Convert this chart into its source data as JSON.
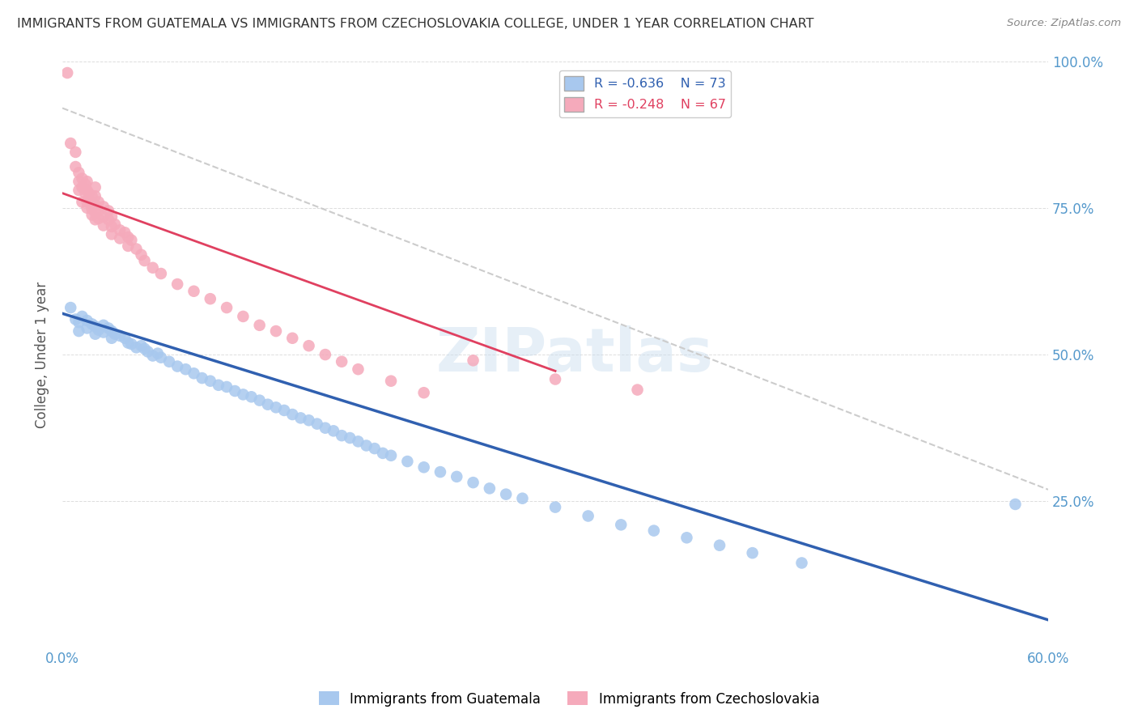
{
  "title": "IMMIGRANTS FROM GUATEMALA VS IMMIGRANTS FROM CZECHOSLOVAKIA COLLEGE, UNDER 1 YEAR CORRELATION CHART",
  "source": "Source: ZipAtlas.com",
  "ylabel": "College, Under 1 year",
  "xlim": [
    0.0,
    0.6
  ],
  "ylim": [
    0.0,
    1.0
  ],
  "legend_blue_r": "R = -0.636",
  "legend_blue_n": "N = 73",
  "legend_pink_r": "R = -0.248",
  "legend_pink_n": "N = 67",
  "blue_color": "#A8C8EE",
  "pink_color": "#F5AABB",
  "blue_line_color": "#3060B0",
  "pink_line_color": "#E04060",
  "dashed_line_color": "#CCCCCC",
  "background_color": "#FFFFFF",
  "grid_color": "#DDDDDD",
  "guatemala_points": [
    [
      0.005,
      0.58
    ],
    [
      0.008,
      0.56
    ],
    [
      0.01,
      0.555
    ],
    [
      0.01,
      0.54
    ],
    [
      0.012,
      0.565
    ],
    [
      0.015,
      0.558
    ],
    [
      0.015,
      0.545
    ],
    [
      0.018,
      0.552
    ],
    [
      0.02,
      0.548
    ],
    [
      0.02,
      0.535
    ],
    [
      0.022,
      0.542
    ],
    [
      0.025,
      0.55
    ],
    [
      0.025,
      0.538
    ],
    [
      0.028,
      0.545
    ],
    [
      0.03,
      0.54
    ],
    [
      0.03,
      0.528
    ],
    [
      0.032,
      0.535
    ],
    [
      0.035,
      0.532
    ],
    [
      0.038,
      0.528
    ],
    [
      0.04,
      0.52
    ],
    [
      0.042,
      0.518
    ],
    [
      0.045,
      0.512
    ],
    [
      0.048,
      0.515
    ],
    [
      0.05,
      0.51
    ],
    [
      0.052,
      0.505
    ],
    [
      0.055,
      0.498
    ],
    [
      0.058,
      0.502
    ],
    [
      0.06,
      0.495
    ],
    [
      0.065,
      0.488
    ],
    [
      0.07,
      0.48
    ],
    [
      0.075,
      0.475
    ],
    [
      0.08,
      0.468
    ],
    [
      0.085,
      0.46
    ],
    [
      0.09,
      0.455
    ],
    [
      0.095,
      0.448
    ],
    [
      0.1,
      0.445
    ],
    [
      0.105,
      0.438
    ],
    [
      0.11,
      0.432
    ],
    [
      0.115,
      0.428
    ],
    [
      0.12,
      0.422
    ],
    [
      0.125,
      0.415
    ],
    [
      0.13,
      0.41
    ],
    [
      0.135,
      0.405
    ],
    [
      0.14,
      0.398
    ],
    [
      0.145,
      0.392
    ],
    [
      0.15,
      0.388
    ],
    [
      0.155,
      0.382
    ],
    [
      0.16,
      0.375
    ],
    [
      0.165,
      0.37
    ],
    [
      0.17,
      0.362
    ],
    [
      0.175,
      0.358
    ],
    [
      0.18,
      0.352
    ],
    [
      0.185,
      0.345
    ],
    [
      0.19,
      0.34
    ],
    [
      0.195,
      0.332
    ],
    [
      0.2,
      0.328
    ],
    [
      0.21,
      0.318
    ],
    [
      0.22,
      0.308
    ],
    [
      0.23,
      0.3
    ],
    [
      0.24,
      0.292
    ],
    [
      0.25,
      0.282
    ],
    [
      0.26,
      0.272
    ],
    [
      0.27,
      0.262
    ],
    [
      0.28,
      0.255
    ],
    [
      0.3,
      0.24
    ],
    [
      0.32,
      0.225
    ],
    [
      0.34,
      0.21
    ],
    [
      0.36,
      0.2
    ],
    [
      0.38,
      0.188
    ],
    [
      0.4,
      0.175
    ],
    [
      0.42,
      0.162
    ],
    [
      0.45,
      0.145
    ],
    [
      0.58,
      0.245
    ]
  ],
  "czechoslovakia_points": [
    [
      0.003,
      0.98
    ],
    [
      0.005,
      0.86
    ],
    [
      0.008,
      0.845
    ],
    [
      0.008,
      0.82
    ],
    [
      0.01,
      0.81
    ],
    [
      0.01,
      0.795
    ],
    [
      0.01,
      0.78
    ],
    [
      0.012,
      0.8
    ],
    [
      0.012,
      0.785
    ],
    [
      0.012,
      0.76
    ],
    [
      0.014,
      0.79
    ],
    [
      0.014,
      0.775
    ],
    [
      0.015,
      0.795
    ],
    [
      0.015,
      0.78
    ],
    [
      0.015,
      0.76
    ],
    [
      0.015,
      0.75
    ],
    [
      0.016,
      0.775
    ],
    [
      0.016,
      0.765
    ],
    [
      0.018,
      0.77
    ],
    [
      0.018,
      0.758
    ],
    [
      0.018,
      0.748
    ],
    [
      0.018,
      0.738
    ],
    [
      0.02,
      0.785
    ],
    [
      0.02,
      0.77
    ],
    [
      0.02,
      0.755
    ],
    [
      0.02,
      0.742
    ],
    [
      0.02,
      0.73
    ],
    [
      0.022,
      0.76
    ],
    [
      0.022,
      0.745
    ],
    [
      0.022,
      0.732
    ],
    [
      0.025,
      0.752
    ],
    [
      0.025,
      0.735
    ],
    [
      0.025,
      0.72
    ],
    [
      0.028,
      0.745
    ],
    [
      0.028,
      0.73
    ],
    [
      0.03,
      0.735
    ],
    [
      0.03,
      0.718
    ],
    [
      0.03,
      0.705
    ],
    [
      0.032,
      0.722
    ],
    [
      0.035,
      0.712
    ],
    [
      0.035,
      0.698
    ],
    [
      0.038,
      0.708
    ],
    [
      0.04,
      0.7
    ],
    [
      0.04,
      0.685
    ],
    [
      0.042,
      0.695
    ],
    [
      0.045,
      0.68
    ],
    [
      0.048,
      0.67
    ],
    [
      0.05,
      0.66
    ],
    [
      0.055,
      0.648
    ],
    [
      0.06,
      0.638
    ],
    [
      0.07,
      0.62
    ],
    [
      0.08,
      0.608
    ],
    [
      0.09,
      0.595
    ],
    [
      0.1,
      0.58
    ],
    [
      0.11,
      0.565
    ],
    [
      0.12,
      0.55
    ],
    [
      0.13,
      0.54
    ],
    [
      0.14,
      0.528
    ],
    [
      0.15,
      0.515
    ],
    [
      0.16,
      0.5
    ],
    [
      0.17,
      0.488
    ],
    [
      0.18,
      0.475
    ],
    [
      0.2,
      0.455
    ],
    [
      0.22,
      0.435
    ],
    [
      0.25,
      0.49
    ],
    [
      0.3,
      0.458
    ],
    [
      0.35,
      0.44
    ]
  ],
  "blue_trend": [
    0.0,
    0.6,
    0.57,
    0.048
  ],
  "pink_trend": [
    0.0,
    0.3,
    0.775,
    0.472
  ],
  "dashed_trend": [
    0.0,
    0.6,
    0.92,
    0.27
  ]
}
